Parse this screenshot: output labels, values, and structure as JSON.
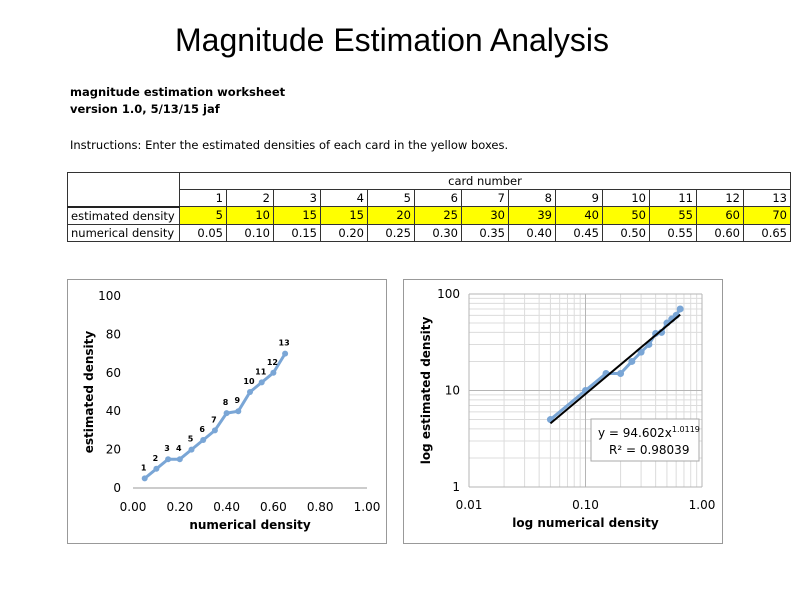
{
  "slide_title": "Magnitude Estimation Analysis",
  "worksheet": {
    "title_line1": "magnitude estimation worksheet",
    "title_line2": "version 1.0, 5/13/15 jaf",
    "instructions": "Instructions: Enter the estimated densities of each card in the yellow boxes."
  },
  "table": {
    "card_header": "card number",
    "cards": [
      "1",
      "2",
      "3",
      "4",
      "5",
      "6",
      "7",
      "8",
      "9",
      "10",
      "11",
      "12",
      "13"
    ],
    "row1_label": "estimated density",
    "row1_values": [
      "5",
      "10",
      "15",
      "15",
      "20",
      "25",
      "30",
      "39",
      "40",
      "50",
      "55",
      "60",
      "70"
    ],
    "row2_label": "numerical density",
    "row2_values": [
      "0.05",
      "0.10",
      "0.15",
      "0.20",
      "0.25",
      "0.30",
      "0.35",
      "0.40",
      "0.45",
      "0.50",
      "0.55",
      "0.60",
      "0.65"
    ],
    "highlight_color": "#ffff00"
  },
  "chart_data": [
    {
      "type": "line",
      "x": [
        0.05,
        0.1,
        0.15,
        0.2,
        0.25,
        0.3,
        0.35,
        0.4,
        0.45,
        0.5,
        0.55,
        0.6,
        0.65
      ],
      "y": [
        5,
        10,
        15,
        15,
        20,
        25,
        30,
        39,
        40,
        50,
        55,
        60,
        70
      ],
      "point_labels": [
        "1",
        "2",
        "3",
        "4",
        "5",
        "6",
        "7",
        "8",
        "9",
        "10",
        "11",
        "12",
        "13"
      ],
      "xlabel": "numerical density",
      "ylabel": "estimated density",
      "xlim": [
        0,
        1
      ],
      "ylim": [
        0,
        100
      ],
      "xticks": [
        "0.00",
        "0.20",
        "0.40",
        "0.60",
        "0.80",
        "1.00"
      ],
      "yticks": [
        "0",
        "20",
        "40",
        "60",
        "80",
        "100"
      ],
      "grid": false,
      "color": "#7aa6d6"
    },
    {
      "type": "scatter",
      "x": [
        0.05,
        0.1,
        0.15,
        0.2,
        0.25,
        0.3,
        0.35,
        0.4,
        0.45,
        0.5,
        0.55,
        0.6,
        0.65
      ],
      "y": [
        5,
        10,
        15,
        15,
        20,
        25,
        30,
        39,
        40,
        50,
        55,
        60,
        70
      ],
      "xlabel": "log numerical density",
      "ylabel": "log estimated density",
      "xscale": "log",
      "yscale": "log",
      "xlim": [
        0.01,
        1
      ],
      "ylim": [
        1,
        100
      ],
      "xticks": [
        "0.01",
        "0.10",
        "1.00"
      ],
      "yticks": [
        "1",
        "10",
        "100"
      ],
      "grid": true,
      "color": "#7aa6d6",
      "trendline": {
        "a": 94.602,
        "b": 1.0119,
        "color": "#000000"
      },
      "equation_base": "y = 94.602x",
      "equation_exp": "1.0119",
      "r2_text": "R² = 0.98039"
    }
  ]
}
